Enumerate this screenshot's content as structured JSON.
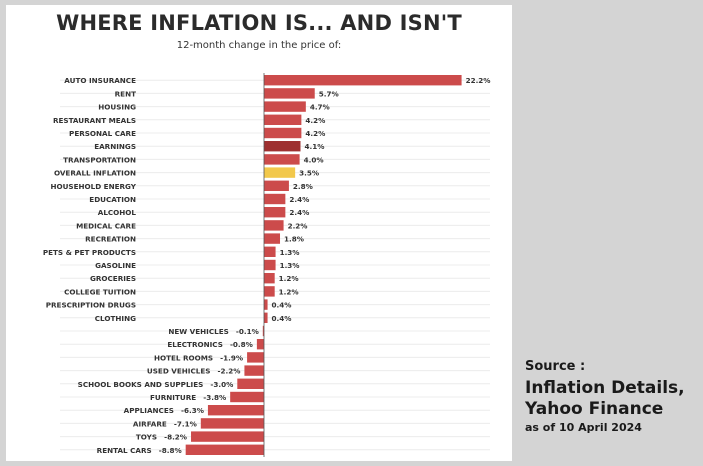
{
  "colors": {
    "bar": "#cc4b4b",
    "highlight_earnings": "#9e3030",
    "highlight_overall": "#f2c84b",
    "gridline": "#ececec",
    "axis": "#555555",
    "text": "#333333"
  },
  "title": "WHERE INFLATION IS... AND ISN'T",
  "subtitle": "12-month change in the price of:",
  "source": {
    "label": "Source :",
    "detail": "Inflation Details,\nYahoo Finance",
    "date": "as of 10 April 2024"
  },
  "chart_data": {
    "type": "bar",
    "orientation": "horizontal",
    "title": "WHERE INFLATION IS... AND ISN'T",
    "subtitle": "12-month change in the price of:",
    "unit": "%",
    "xlim": [
      -8.8,
      22.2
    ],
    "grid": true,
    "categories": [
      "AUTO INSURANCE",
      "RENT",
      "HOUSING",
      "RESTAURANT MEALS",
      "PERSONAL CARE",
      "EARNINGS",
      "TRANSPORTATION",
      "OVERALL INFLATION",
      "HOUSEHOLD ENERGY",
      "EDUCATION",
      "ALCOHOL",
      "MEDICAL CARE",
      "RECREATION",
      "PETS & PET PRODUCTS",
      "GASOLINE",
      "GROCERIES",
      "COLLEGE TUITION",
      "PRESCRIPTION DRUGS",
      "CLOTHING",
      "NEW VEHICLES",
      "ELECTRONICS",
      "HOTEL ROOMS",
      "USED VEHICLES",
      "SCHOOL BOOKS AND SUPPLIES",
      "FURNITURE",
      "APPLIANCES",
      "AIRFARE",
      "TOYS",
      "RENTAL CARS"
    ],
    "values": [
      22.2,
      5.7,
      4.7,
      4.2,
      4.2,
      4.1,
      4.0,
      3.5,
      2.8,
      2.4,
      2.4,
      2.2,
      1.8,
      1.3,
      1.3,
      1.2,
      1.2,
      0.4,
      0.4,
      -0.1,
      -0.8,
      -1.9,
      -2.2,
      -3.0,
      -3.8,
      -6.3,
      -7.1,
      -8.2,
      -8.8
    ],
    "value_labels": [
      "22.2%",
      "5.7%",
      "4.7%",
      "4.2%",
      "4.2%",
      "4.1%",
      "4.0%",
      "3.5%",
      "2.8%",
      "2.4%",
      "2.4%",
      "2.2%",
      "1.8%",
      "1.3%",
      "1.3%",
      "1.2%",
      "1.2%",
      "0.4%",
      "0.4%",
      "-0.1%",
      "-0.8%",
      "-1.9%",
      "-2.2%",
      "-3.0%",
      "-3.8%",
      "-6.3%",
      "-7.1%",
      "-8.2%",
      "-8.8%"
    ],
    "highlights": {
      "EARNINGS": "highlight_earnings",
      "OVERALL INFLATION": "highlight_overall"
    }
  }
}
